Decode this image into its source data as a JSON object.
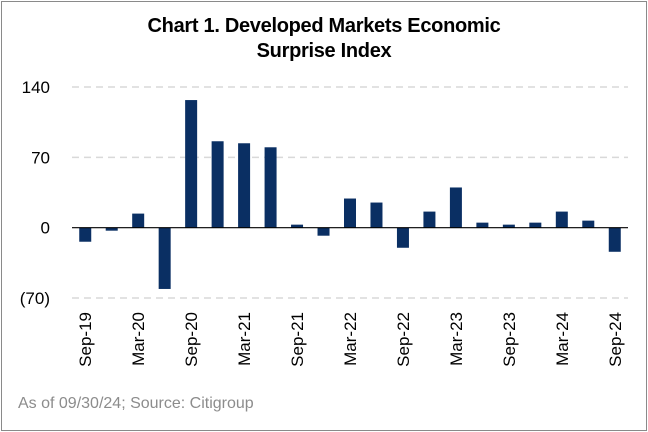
{
  "title_line1": "Chart 1. Developed Markets Economic",
  "title_line2": "Surprise Index",
  "footnote": "As of 09/30/24; Source: Citigroup",
  "colors": {
    "bar": "#0a2f63",
    "grid": "#d9d9d9",
    "axis": "#000000",
    "footnote": "#8c8c8c"
  },
  "chart_data": {
    "type": "bar",
    "categories": [
      "Sep-19",
      "Dec-19",
      "Mar-20",
      "Jun-20",
      "Sep-20",
      "Dec-20",
      "Mar-21",
      "Jun-21",
      "Sep-21",
      "Dec-21",
      "Mar-22",
      "Jun-22",
      "Sep-22",
      "Dec-22",
      "Mar-23",
      "Jun-23",
      "Sep-23",
      "Dec-23",
      "Mar-24",
      "Jun-24",
      "Sep-24"
    ],
    "values": [
      -14,
      -3,
      14,
      -61,
      127,
      86,
      84,
      80,
      3,
      -8,
      29,
      25,
      -20,
      16,
      40,
      5,
      3,
      5,
      16,
      7,
      -24
    ],
    "tick_labels": [
      "Sep-19",
      "Mar-20",
      "Sep-20",
      "Mar-21",
      "Sep-21",
      "Mar-22",
      "Sep-22",
      "Mar-23",
      "Sep-23",
      "Mar-24",
      "Sep-24"
    ],
    "y_ticks": [
      {
        "value": 140,
        "label": "140"
      },
      {
        "value": 70,
        "label": "70"
      },
      {
        "value": 0,
        "label": "0"
      },
      {
        "value": -70,
        "label": "(70)"
      }
    ],
    "ylim": [
      -70,
      140
    ],
    "grid": true,
    "title": "Chart 1. Developed Markets Economic Surprise Index",
    "xlabel": "",
    "ylabel": ""
  }
}
